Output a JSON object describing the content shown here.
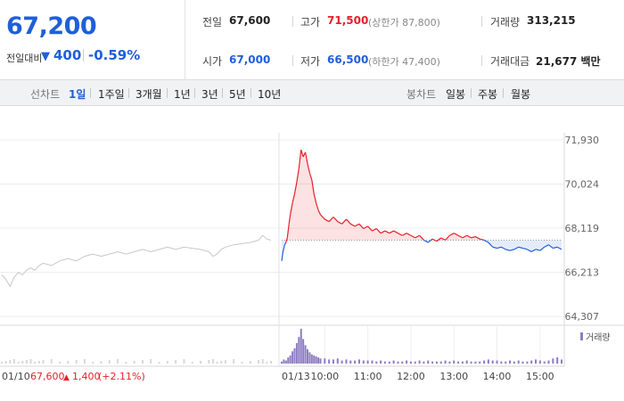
{
  "quote": {
    "price": "67,200",
    "compare_label": "전일대비",
    "compare_arrow": "▼",
    "compare_value": "400",
    "compare_rate": "-0.59%"
  },
  "stats": {
    "prev_label": "전일",
    "prev_value": "67,600",
    "high_label": "고가",
    "high_value": "71,500",
    "upper_limit": "(상한가 87,800)",
    "volume_label": "거래량",
    "volume_value": "313,215",
    "open_label": "시가",
    "open_value": "67,000",
    "low_label": "저가",
    "low_value": "66,500",
    "lower_limit": "(하한가 47,400)",
    "amount_label": "거래대금",
    "amount_value": "21,677 백만"
  },
  "tabs": {
    "line_label": "선차트",
    "line_tabs": [
      "1일",
      "1주일",
      "3개월",
      "1년",
      "3년",
      "5년",
      "10년"
    ],
    "active_index": 0,
    "candle_label": "봉차트",
    "candle_tabs": [
      "일봉",
      "주봉",
      "월봉"
    ]
  },
  "colors": {
    "up": "#e5202a",
    "down": "#1f5fd8",
    "prev_day_line": "#c8c8c8",
    "volume": "#8e7cc3"
  },
  "chart_data": {
    "type": "line",
    "y_ticks": [
      "71,930",
      "70,024",
      "68,119",
      "66,213",
      "64,307"
    ],
    "ylim": [
      64307,
      71930
    ],
    "baseline": 67600,
    "prev_day_label": "01/10",
    "prev_day_close": "67,600",
    "prev_day_change_arrow": "▲",
    "prev_day_change": "1,400",
    "prev_day_change_rate": "(+2.11%)",
    "date_label": "01/13",
    "x_ticks": [
      "10:00",
      "11:00",
      "12:00",
      "13:00",
      "14:00",
      "15:00"
    ],
    "volume_legend": "거래량",
    "previous_day_series": [
      [
        9.0,
        66100
      ],
      [
        9.1,
        65900
      ],
      [
        9.2,
        65600
      ],
      [
        9.3,
        66000
      ],
      [
        9.4,
        66200
      ],
      [
        9.5,
        66100
      ],
      [
        9.6,
        66300
      ],
      [
        9.7,
        66400
      ],
      [
        9.8,
        66300
      ],
      [
        9.9,
        66500
      ],
      [
        10.0,
        66600
      ],
      [
        10.2,
        66500
      ],
      [
        10.4,
        66700
      ],
      [
        10.6,
        66800
      ],
      [
        10.8,
        66700
      ],
      [
        11.0,
        66900
      ],
      [
        11.2,
        67000
      ],
      [
        11.4,
        66900
      ],
      [
        11.6,
        67000
      ],
      [
        11.8,
        67100
      ],
      [
        12.0,
        67000
      ],
      [
        12.2,
        67100
      ],
      [
        12.4,
        67200
      ],
      [
        12.6,
        67100
      ],
      [
        12.8,
        67200
      ],
      [
        13.0,
        67300
      ],
      [
        13.2,
        67200
      ],
      [
        13.4,
        67300
      ],
      [
        13.6,
        67250
      ],
      [
        13.8,
        67200
      ],
      [
        14.0,
        67100
      ],
      [
        14.1,
        66900
      ],
      [
        14.2,
        67000
      ],
      [
        14.3,
        67200
      ],
      [
        14.4,
        67300
      ],
      [
        14.6,
        67400
      ],
      [
        14.8,
        67450
      ],
      [
        15.0,
        67500
      ],
      [
        15.2,
        67600
      ],
      [
        15.3,
        67800
      ],
      [
        15.4,
        67650
      ],
      [
        15.5,
        67600
      ]
    ],
    "series": [
      {
        "values": [
          [
            9.0,
            66700
          ],
          [
            9.03,
            67100
          ],
          [
            9.07,
            67400
          ],
          [
            9.1,
            67500
          ],
          [
            9.13,
            67700
          ],
          [
            9.17,
            68300
          ],
          [
            9.2,
            68700
          ],
          [
            9.25,
            69200
          ],
          [
            9.3,
            69600
          ],
          [
            9.35,
            70100
          ],
          [
            9.4,
            70700
          ],
          [
            9.45,
            71500
          ],
          [
            9.5,
            71200
          ],
          [
            9.55,
            71400
          ],
          [
            9.6,
            70900
          ],
          [
            9.65,
            70500
          ],
          [
            9.7,
            70200
          ],
          [
            9.75,
            69600
          ],
          [
            9.8,
            69200
          ],
          [
            9.85,
            68900
          ],
          [
            9.9,
            68700
          ],
          [
            10.0,
            68500
          ],
          [
            10.1,
            68400
          ],
          [
            10.2,
            68600
          ],
          [
            10.3,
            68400
          ],
          [
            10.4,
            68300
          ],
          [
            10.5,
            68500
          ],
          [
            10.6,
            68300
          ],
          [
            10.7,
            68200
          ],
          [
            10.8,
            68300
          ],
          [
            10.9,
            68100
          ],
          [
            11.0,
            68200
          ],
          [
            11.1,
            68000
          ],
          [
            11.2,
            68100
          ],
          [
            11.3,
            67900
          ],
          [
            11.4,
            68000
          ],
          [
            11.5,
            67900
          ],
          [
            11.6,
            68000
          ],
          [
            11.7,
            67900
          ],
          [
            11.8,
            67800
          ],
          [
            11.9,
            67900
          ],
          [
            12.0,
            67800
          ],
          [
            12.1,
            67700
          ],
          [
            12.2,
            67800
          ],
          [
            12.3,
            67600
          ],
          [
            12.4,
            67500
          ],
          [
            12.5,
            67650
          ],
          [
            12.6,
            67550
          ],
          [
            12.7,
            67700
          ],
          [
            12.8,
            67600
          ],
          [
            12.9,
            67800
          ],
          [
            13.0,
            67900
          ],
          [
            13.1,
            67800
          ],
          [
            13.2,
            67700
          ],
          [
            13.3,
            67800
          ],
          [
            13.4,
            67700
          ],
          [
            13.5,
            67750
          ],
          [
            13.6,
            67650
          ],
          [
            13.7,
            67600
          ],
          [
            13.8,
            67500
          ],
          [
            13.9,
            67300
          ],
          [
            14.0,
            67250
          ],
          [
            14.1,
            67300
          ],
          [
            14.2,
            67200
          ],
          [
            14.3,
            67150
          ],
          [
            14.4,
            67200
          ],
          [
            14.5,
            67300
          ],
          [
            14.6,
            67250
          ],
          [
            14.7,
            67200
          ],
          [
            14.8,
            67100
          ],
          [
            14.9,
            67200
          ],
          [
            15.0,
            67150
          ],
          [
            15.1,
            67300
          ],
          [
            15.2,
            67400
          ],
          [
            15.3,
            67250
          ],
          [
            15.4,
            67300
          ],
          [
            15.5,
            67200
          ]
        ]
      }
    ],
    "volume": [
      [
        9.0,
        2
      ],
      [
        9.05,
        4
      ],
      [
        9.1,
        3
      ],
      [
        9.15,
        6
      ],
      [
        9.2,
        8
      ],
      [
        9.25,
        12
      ],
      [
        9.3,
        15
      ],
      [
        9.35,
        20
      ],
      [
        9.4,
        26
      ],
      [
        9.45,
        34
      ],
      [
        9.5,
        24
      ],
      [
        9.55,
        18
      ],
      [
        9.6,
        14
      ],
      [
        9.65,
        11
      ],
      [
        9.7,
        9
      ],
      [
        9.75,
        8
      ],
      [
        9.8,
        7
      ],
      [
        9.85,
        6
      ],
      [
        9.9,
        5
      ],
      [
        10.0,
        5
      ],
      [
        10.1,
        4
      ],
      [
        10.2,
        4
      ],
      [
        10.3,
        5
      ],
      [
        10.4,
        3
      ],
      [
        10.5,
        4
      ],
      [
        10.6,
        3
      ],
      [
        10.7,
        3
      ],
      [
        10.8,
        4
      ],
      [
        10.9,
        3
      ],
      [
        11.0,
        3
      ],
      [
        11.1,
        3
      ],
      [
        11.2,
        2
      ],
      [
        11.3,
        3
      ],
      [
        11.4,
        2
      ],
      [
        11.5,
        2
      ],
      [
        11.6,
        3
      ],
      [
        11.7,
        2
      ],
      [
        11.8,
        2
      ],
      [
        11.9,
        3
      ],
      [
        12.0,
        2
      ],
      [
        12.1,
        2
      ],
      [
        12.2,
        3
      ],
      [
        12.3,
        2
      ],
      [
        12.4,
        3
      ],
      [
        12.5,
        2
      ],
      [
        12.6,
        2
      ],
      [
        12.7,
        2
      ],
      [
        12.8,
        3
      ],
      [
        12.9,
        2
      ],
      [
        13.0,
        3
      ],
      [
        13.1,
        2
      ],
      [
        13.2,
        2
      ],
      [
        13.3,
        3
      ],
      [
        13.4,
        2
      ],
      [
        13.5,
        2
      ],
      [
        13.6,
        2
      ],
      [
        13.7,
        3
      ],
      [
        13.8,
        4
      ],
      [
        13.9,
        3
      ],
      [
        14.0,
        3
      ],
      [
        14.1,
        2
      ],
      [
        14.2,
        2
      ],
      [
        14.3,
        3
      ],
      [
        14.4,
        2
      ],
      [
        14.5,
        3
      ],
      [
        14.6,
        2
      ],
      [
        14.7,
        2
      ],
      [
        14.8,
        3
      ],
      [
        14.9,
        4
      ],
      [
        15.0,
        3
      ],
      [
        15.1,
        2
      ],
      [
        15.2,
        3
      ],
      [
        15.3,
        5
      ],
      [
        15.4,
        6
      ],
      [
        15.5,
        4
      ]
    ]
  }
}
